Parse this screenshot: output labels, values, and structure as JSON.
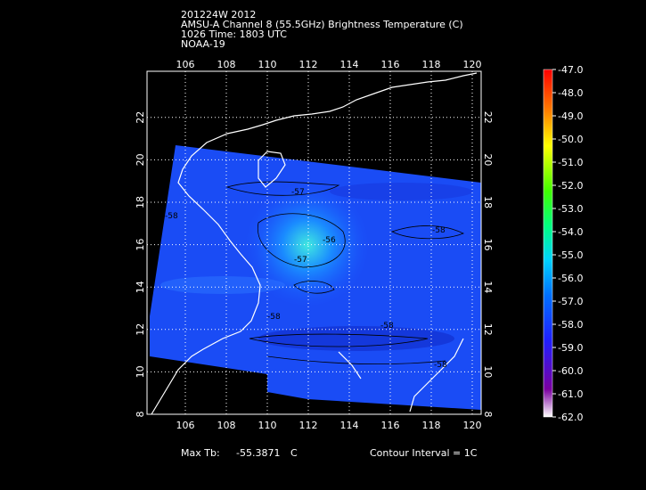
{
  "header": {
    "lines": [
      "201224W 2012",
      "AMSU-A Channel 8 (55.5GHz) Brightness Temperature (C)",
      "1026 Time: 1803 UTC",
      "NOAA-19"
    ]
  },
  "map": {
    "lon_ticks": [
      "106",
      "108",
      "110",
      "112",
      "114",
      "116",
      "118",
      "120"
    ],
    "lat_ticks": [
      "8",
      "10",
      "12",
      "14",
      "16",
      "18",
      "20",
      "22"
    ],
    "contour_labels": [
      "-57",
      "-56",
      "-57",
      "-58",
      "-58",
      "-58",
      "-58",
      "-58"
    ]
  },
  "colorbar": {
    "ticks": [
      "-47.0",
      "-48.0",
      "-49.0",
      "-50.0",
      "-51.0",
      "-52.0",
      "-53.0",
      "-54.0",
      "-55.0",
      "-56.0",
      "-57.0",
      "-58.0",
      "-59.0",
      "-60.0",
      "-61.0",
      "-62.0"
    ]
  },
  "footer": {
    "max_label": "Max Tb:",
    "max_value": "-55.3871",
    "max_unit": "C",
    "contour_interval": "Contour Interval = 1C"
  }
}
